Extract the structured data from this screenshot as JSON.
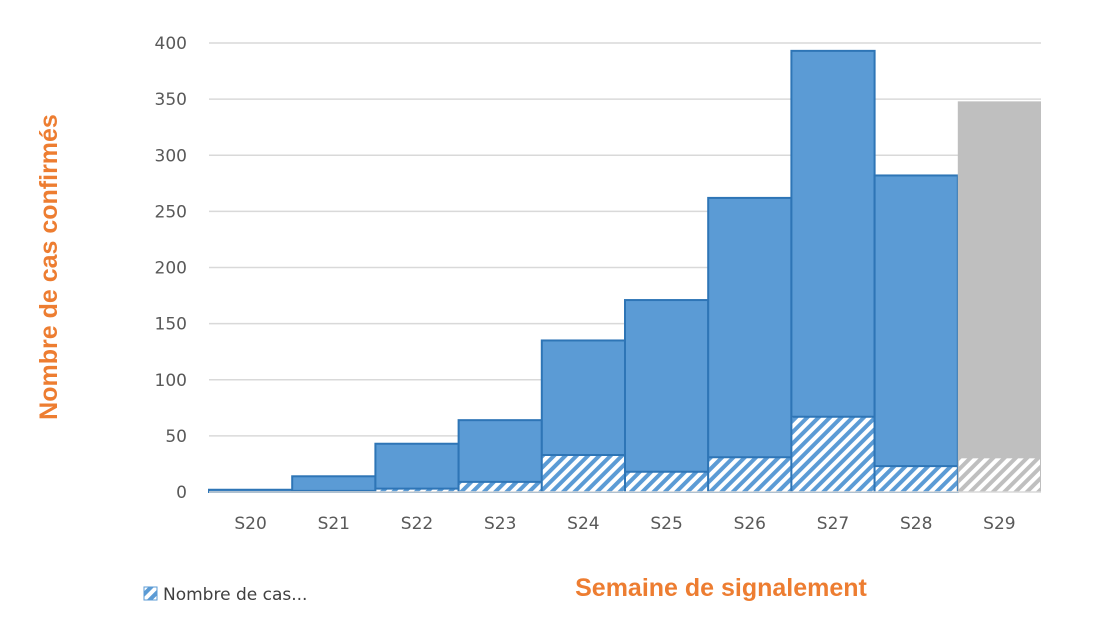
{
  "chart_data": {
    "type": "bar",
    "title": "",
    "xlabel": "Semaine de signalement",
    "ylabel": "Nombre de cas confirmés",
    "ylim": [
      0,
      400
    ],
    "yticks": [
      0,
      50,
      100,
      150,
      200,
      250,
      300,
      350,
      400
    ],
    "grid": true,
    "categories": [
      "S20",
      "S21",
      "S22",
      "S23",
      "S24",
      "S25",
      "S26",
      "S27",
      "S28",
      "S29"
    ],
    "series": [
      {
        "name": "Nombre de cas confirmés",
        "values": [
          2,
          14,
          43,
          64,
          135,
          171,
          262,
          393,
          282,
          348
        ],
        "color": "#5B9BD5",
        "note": "S29 shown in grey (incomplete week)"
      },
      {
        "name": "Nombre de cas...",
        "values": [
          0,
          1,
          3,
          9,
          33,
          18,
          31,
          67,
          23,
          30
        ],
        "pattern": "hatched",
        "color": "#5B9BD5"
      }
    ],
    "legend": {
      "position": "bottom-left",
      "entries": [
        "Nombre de cas..."
      ]
    },
    "colors": {
      "bar": "#5B9BD5",
      "bar_border": "#2E75B6",
      "last_bar": "#BFBFBF",
      "grid": "#D9D9D9",
      "axis_title": "#ED7D31"
    }
  }
}
